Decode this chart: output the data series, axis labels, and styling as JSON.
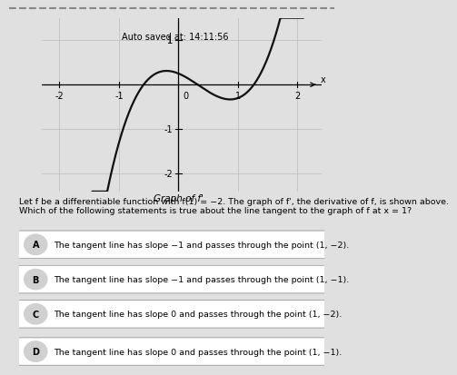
{
  "title": "Graph of f'",
  "auto_save_text": "Auto saved at: 14:11:56",
  "xlim": [
    -2.3,
    2.4
  ],
  "ylim": [
    -2.4,
    1.5
  ],
  "xticks": [
    -2,
    -1,
    0,
    1,
    2
  ],
  "yticks": [
    -2,
    -1,
    1
  ],
  "xlabel": "x",
  "page_bg": "#e0e0e0",
  "graph_bg": "#d4d4d4",
  "grid_color": "#bbbbbb",
  "curve_color": "#111111",
  "autosave_bg": "#c8dfc0",
  "question_text_line1": "Let f be a differentiable function with f(1) = −2. The graph of f', the derivative of f, is shown above.",
  "question_text_line2": "Which of the following statements is true about the line tangent to the graph of f at x = 1?",
  "options": [
    {
      "label": "A",
      "text": "The tangent line has slope −1 and passes through the point (1, −2)."
    },
    {
      "label": "B",
      "text": "The tangent line has slope −1 and passes through the point (1, −1)."
    },
    {
      "label": "C",
      "text": "The tangent line has slope 0 and passes through the point (1, −2)."
    },
    {
      "label": "D",
      "text": "The tangent line has slope 0 and passes through the point (1, −1)."
    }
  ],
  "option_fontsize": 6.8,
  "question_fontsize": 6.8,
  "title_fontsize": 7.5,
  "tick_fontsize": 7.0,
  "autosave_fontsize": 7.0
}
